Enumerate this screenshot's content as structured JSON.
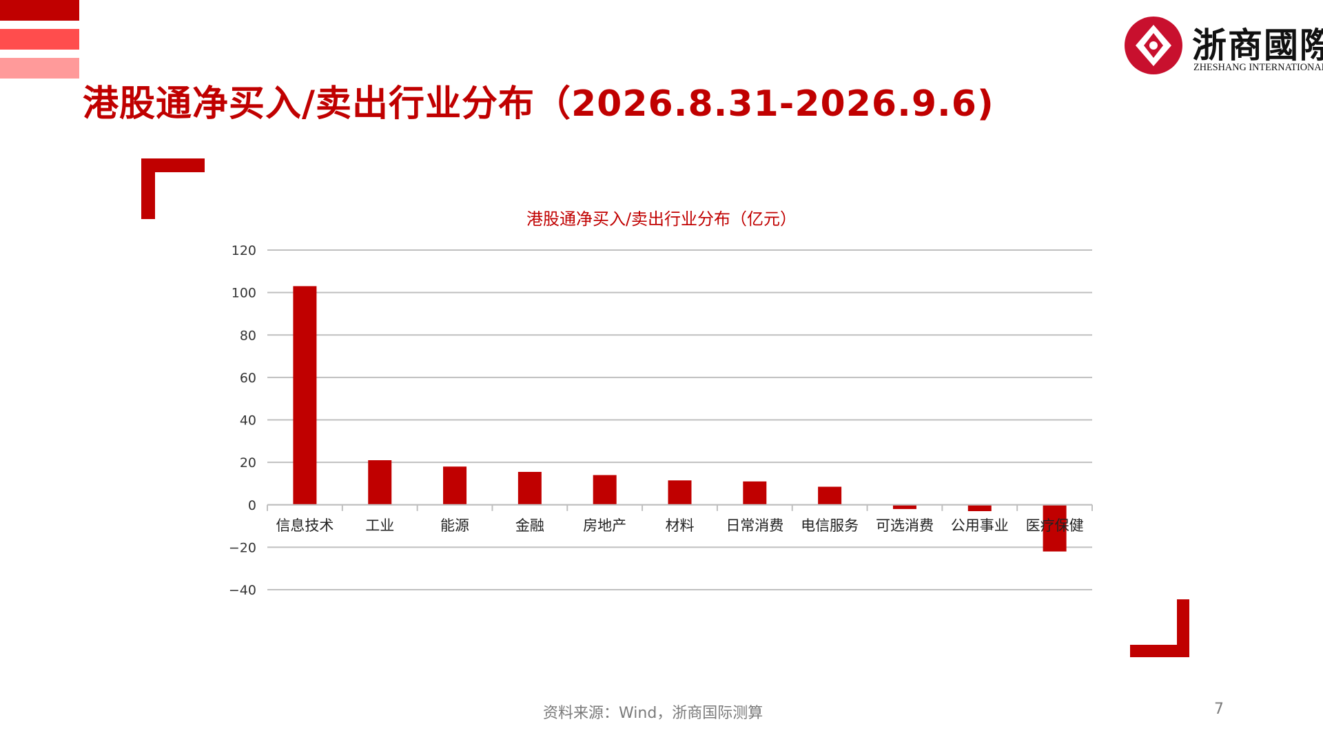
{
  "page": {
    "title": "港股通净买入/卖出行业分布（2026.8.31-2026.9.6)",
    "source": "资料来源：Wind，浙商国际测算",
    "page_number": "7"
  },
  "logo": {
    "name_cn": "浙商國際",
    "name_en": "ZHESHANG INTERNATIONAL"
  },
  "colors": {
    "accent": "#c00000",
    "bar": "#c00000",
    "grid": "#bfbfbf"
  },
  "chart_data": {
    "type": "bar",
    "title": "港股通净买入/卖出行业分布（亿元）",
    "xlabel": "",
    "ylabel": "",
    "categories": [
      "信息技术",
      "工业",
      "能源",
      "金融",
      "房地产",
      "材料",
      "日常消费",
      "电信服务",
      "可选消费",
      "公用事业",
      "医疗保健"
    ],
    "values": [
      103,
      21,
      18,
      15.5,
      14,
      11.5,
      11,
      8.5,
      -2,
      -3,
      -22
    ],
    "ylim": [
      -40,
      120
    ],
    "yticks": [
      120,
      100,
      80,
      60,
      40,
      20,
      0,
      -20,
      -40
    ],
    "grid": true,
    "legend": "none"
  }
}
